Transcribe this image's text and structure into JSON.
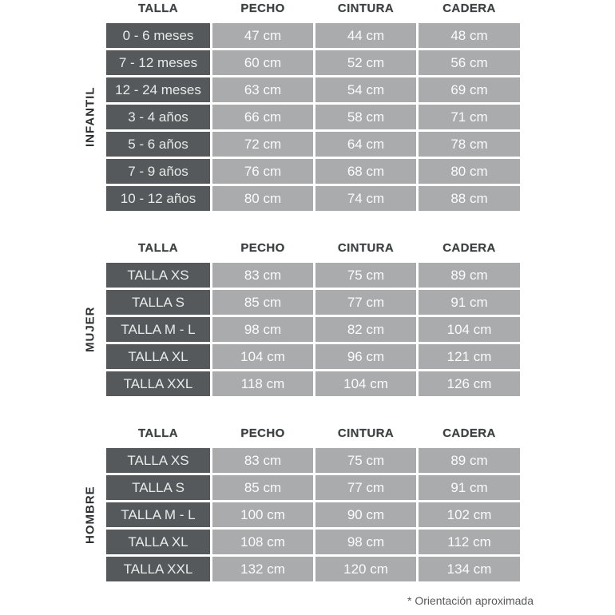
{
  "chart_data": [
    {
      "type": "table",
      "section_label": "INFANTIL",
      "columns": [
        "TALLA",
        "PECHO",
        "CINTURA",
        "CADERA"
      ],
      "rows": [
        [
          "0 - 6 meses",
          "47 cm",
          "44 cm",
          "48 cm"
        ],
        [
          "7 - 12 meses",
          "60 cm",
          "52 cm",
          "56 cm"
        ],
        [
          "12 - 24 meses",
          "63 cm",
          "54 cm",
          "69 cm"
        ],
        [
          "3 - 4 años",
          "66 cm",
          "58 cm",
          "71 cm"
        ],
        [
          "5 - 6 años",
          "72 cm",
          "64 cm",
          "78 cm"
        ],
        [
          "7 - 9 años",
          "76 cm",
          "68 cm",
          "80 cm"
        ],
        [
          "10 - 12 años",
          "80 cm",
          "74 cm",
          "88 cm"
        ]
      ]
    },
    {
      "type": "table",
      "section_label": "MUJER",
      "columns": [
        "TALLA",
        "PECHO",
        "CINTURA",
        "CADERA"
      ],
      "rows": [
        [
          "TALLA XS",
          "83 cm",
          "75 cm",
          "89 cm"
        ],
        [
          "TALLA S",
          "85 cm",
          "77 cm",
          "91 cm"
        ],
        [
          "TALLA M - L",
          "98 cm",
          "82 cm",
          "104 cm"
        ],
        [
          "TALLA XL",
          "104 cm",
          "96 cm",
          "121 cm"
        ],
        [
          "TALLA XXL",
          "118 cm",
          "104 cm",
          "126 cm"
        ]
      ]
    },
    {
      "type": "table",
      "section_label": "HOMBRE",
      "columns": [
        "TALLA",
        "PECHO",
        "CINTURA",
        "CADERA"
      ],
      "rows": [
        [
          "TALLA XS",
          "83 cm",
          "75 cm",
          "89 cm"
        ],
        [
          "TALLA S",
          "85 cm",
          "77 cm",
          "91 cm"
        ],
        [
          "TALLA M - L",
          "100 cm",
          "90 cm",
          "102 cm"
        ],
        [
          "TALLA XL",
          "108 cm",
          "98 cm",
          "112 cm"
        ],
        [
          "TALLA XXL",
          "132 cm",
          "120 cm",
          "134 cm"
        ]
      ]
    }
  ],
  "footnote": "* Orientación aproximada",
  "colors": {
    "dark_cell": "#55595b",
    "light_cell": "#a9abac",
    "header_text": "#3e4142",
    "dark_cell_text": "#e9eaea",
    "light_cell_text": "#fbfbfb",
    "section_label_text": "#2d3032",
    "footnote_text": "#58595b",
    "background": "#ffffff"
  }
}
